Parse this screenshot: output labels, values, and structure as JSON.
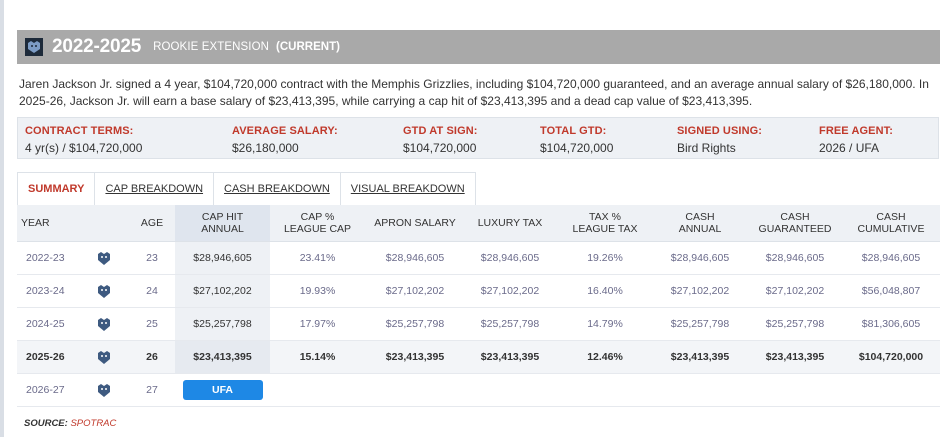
{
  "header": {
    "years": "2022-2025",
    "contract_type": "ROOKIE EXTENSION",
    "status": "(CURRENT)",
    "logo_icon": "grizzlies-logo-icon"
  },
  "summary": "Jaren Jackson Jr. signed a 4 year, $104,720,000 contract with the Memphis Grizzlies, including $104,720,000 guaranteed, and an average annual salary of $26,180,000. In 2025-26, Jackson Jr. will earn a base salary of $23,413,395, while carrying a cap hit of $23,413,395 and a dead cap value of $23,413,395.",
  "terms": [
    {
      "label": "CONTRACT TERMS:",
      "value": "4 yr(s) / $104,720,000"
    },
    {
      "label": "AVERAGE SALARY:",
      "value": "$26,180,000"
    },
    {
      "label": "GTD AT SIGN:",
      "value": "$104,720,000"
    },
    {
      "label": "TOTAL GTD:",
      "value": "$104,720,000"
    },
    {
      "label": "SIGNED USING:",
      "value": "Bird Rights"
    },
    {
      "label": "FREE AGENT:",
      "value": "2026 / UFA"
    }
  ],
  "tabs": [
    {
      "label": "SUMMARY",
      "active": true
    },
    {
      "label": "CAP BREAKDOWN",
      "active": false
    },
    {
      "label": "CASH BREAKDOWN",
      "active": false
    },
    {
      "label": "VISUAL BREAKDOWN",
      "active": false
    }
  ],
  "table": {
    "headers": [
      {
        "line1": "YEAR",
        "line2": ""
      },
      {
        "line1": "",
        "line2": ""
      },
      {
        "line1": "AGE",
        "line2": ""
      },
      {
        "line1": "CAP HIT",
        "line2": "ANNUAL"
      },
      {
        "line1": "CAP %",
        "line2": "LEAGUE CAP"
      },
      {
        "line1": "APRON SALARY",
        "line2": ""
      },
      {
        "line1": "LUXURY TAX",
        "line2": ""
      },
      {
        "line1": "TAX %",
        "line2": "LEAGUE TAX"
      },
      {
        "line1": "CASH",
        "line2": "ANNUAL"
      },
      {
        "line1": "CASH",
        "line2": "GUARANTEED"
      },
      {
        "line1": "CASH",
        "line2": "CUMULATIVE"
      }
    ],
    "rows": [
      {
        "year": "2022-23",
        "age": "23",
        "cap_hit": "$28,946,605",
        "cap_pct": "23.41%",
        "apron": "$28,946,605",
        "lux_tax": "$28,946,605",
        "tax_pct": "19.26%",
        "cash_annual": "$28,946,605",
        "cash_gtd": "$28,946,605",
        "cash_cum": "$28,946,605"
      },
      {
        "year": "2023-24",
        "age": "24",
        "cap_hit": "$27,102,202",
        "cap_pct": "19.93%",
        "apron": "$27,102,202",
        "lux_tax": "$27,102,202",
        "tax_pct": "16.40%",
        "cash_annual": "$27,102,202",
        "cash_gtd": "$27,102,202",
        "cash_cum": "$56,048,807"
      },
      {
        "year": "2024-25",
        "age": "25",
        "cap_hit": "$25,257,798",
        "cap_pct": "17.97%",
        "apron": "$25,257,798",
        "lux_tax": "$25,257,798",
        "tax_pct": "14.79%",
        "cash_annual": "$25,257,798",
        "cash_gtd": "$25,257,798",
        "cash_cum": "$81,306,605"
      },
      {
        "year": "2025-26",
        "age": "26",
        "cap_hit": "$23,413,395",
        "cap_pct": "15.14%",
        "apron": "$23,413,395",
        "lux_tax": "$23,413,395",
        "tax_pct": "12.46%",
        "cash_annual": "$23,413,395",
        "cash_gtd": "$23,413,395",
        "cash_cum": "$104,720,000"
      }
    ],
    "ufa_row": {
      "year": "2026-27",
      "age": "27",
      "badge": "UFA"
    }
  },
  "source": {
    "label": "SOURCE:",
    "value": "SPOTRAC"
  },
  "colors": {
    "accent": "#c0392b",
    "header_bg": "#a9a9a9",
    "ufa_blue": "#1e88e5",
    "terms_bg": "#eef1f5"
  }
}
